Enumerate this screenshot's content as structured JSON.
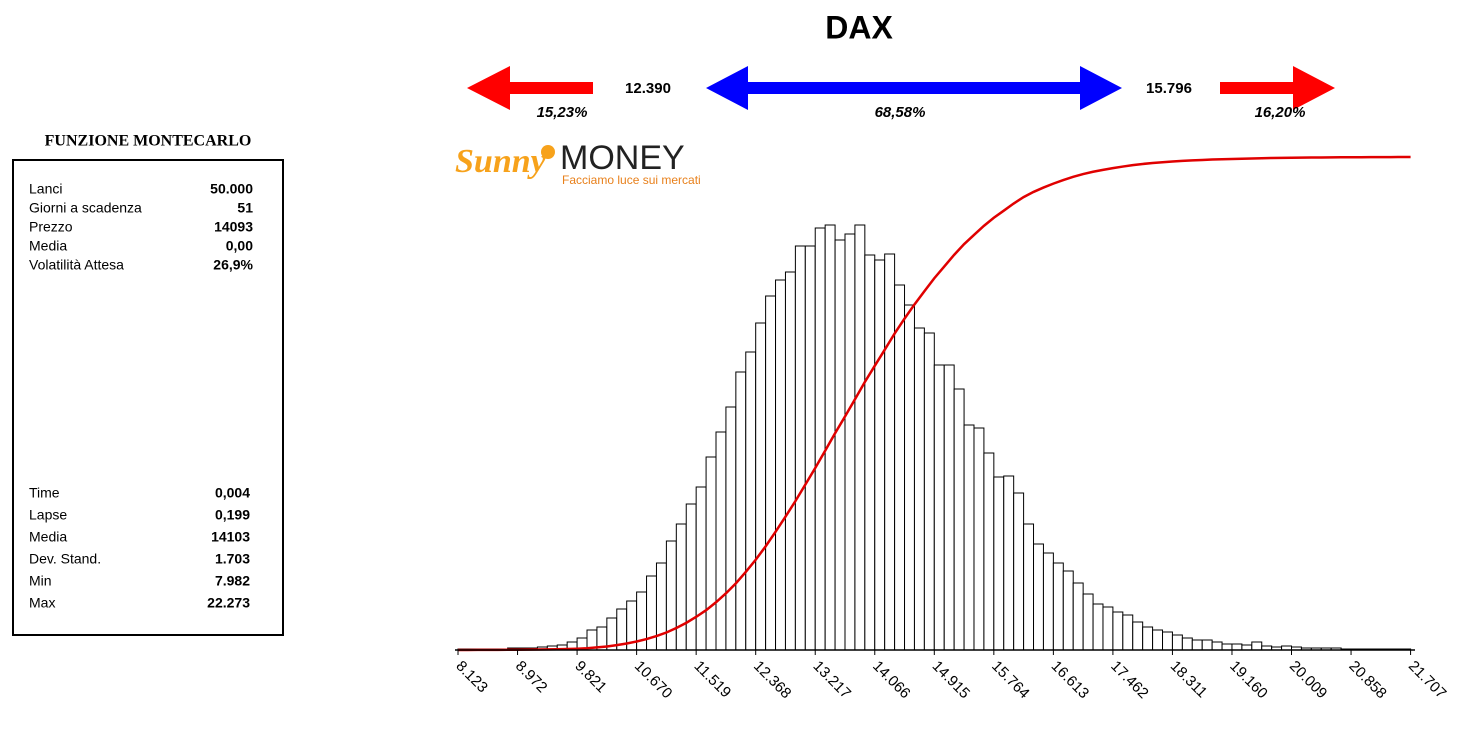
{
  "chart_data": {
    "type": "histogram",
    "title": "DAX",
    "bins": [
      8123,
      8264.5,
      8406,
      8547.5,
      8689,
      8830.5,
      8972,
      9113.5,
      9255,
      9396.5,
      9538,
      9679.5,
      9821,
      9962.5,
      10104,
      10245.5,
      10387,
      10528.5,
      10670,
      10811.5,
      10953,
      11094.5,
      11236,
      11377.5,
      11519,
      11660.5,
      11802,
      11943.5,
      12085,
      12226.5,
      12368,
      12509.5,
      12651,
      12792.5,
      12934,
      13075.5,
      13217,
      13358.5,
      13500,
      13641.5,
      13783,
      13924.5,
      14066,
      14207.5,
      14349,
      14490.5,
      14632,
      14773.5,
      14915,
      15056.5,
      15198,
      15339.5,
      15481,
      15622.5,
      15764,
      15905.5,
      16047,
      16188.5,
      16330,
      16471.5,
      16613,
      16754.5,
      16896,
      17037.5,
      17179,
      17320.5,
      17462,
      17603.5,
      17745,
      17886.5,
      18028,
      18169.5,
      18311,
      18452.5,
      18594,
      18735.5,
      18877,
      19018.5,
      19160,
      19301.5,
      19443,
      19584.5,
      19726,
      19867.5,
      20009,
      20150.5,
      20292,
      20433.5,
      20575,
      20716.5,
      20858,
      20999.5,
      21141,
      21282.5,
      21424,
      21565.5,
      21707
    ],
    "counts": [
      4,
      4,
      4,
      4,
      4,
      8,
      8,
      8,
      12,
      16,
      20,
      32,
      48,
      80,
      92,
      128,
      164,
      196,
      232,
      296,
      348,
      436,
      504,
      584,
      652,
      772,
      872,
      972,
      1112,
      1192,
      1308,
      1416,
      1480,
      1512,
      1616,
      1616,
      1688,
      1700,
      1640,
      1664,
      1700,
      1580,
      1560,
      1584,
      1460,
      1380,
      1288,
      1268,
      1140,
      1140,
      1044,
      900,
      888,
      788,
      692,
      696,
      628,
      504,
      424,
      388,
      348,
      316,
      268,
      224,
      184,
      172,
      152,
      140,
      112,
      92,
      80,
      72,
      60,
      48,
      40,
      40,
      32,
      24,
      24,
      20,
      32,
      16,
      12,
      16,
      12,
      8,
      8,
      8,
      8,
      4,
      4,
      4,
      4,
      4,
      4,
      4
    ],
    "color": "#ffffff",
    "line_color": "#e00000",
    "xlim": [
      8080,
      21770
    ],
    "xticks": [
      {
        "value": 8123,
        "label": "8.123"
      },
      {
        "value": 8972,
        "label": "8.972"
      },
      {
        "value": 9821,
        "label": "9.821"
      },
      {
        "value": 10670,
        "label": "10.670"
      },
      {
        "value": 11519,
        "label": "11.519"
      },
      {
        "value": 12368,
        "label": "12.368"
      },
      {
        "value": 13217,
        "label": "13.217"
      },
      {
        "value": 14066,
        "label": "14.066"
      },
      {
        "value": 14915,
        "label": "14.915"
      },
      {
        "value": 15764,
        "label": "15.764"
      },
      {
        "value": 16613,
        "label": "16.613"
      },
      {
        "value": 17462,
        "label": "17.462"
      },
      {
        "value": 18311,
        "label": "18.311"
      },
      {
        "value": 19160,
        "label": "19.160"
      },
      {
        "value": 20009,
        "label": "20.009"
      },
      {
        "value": 20858,
        "label": "20.858"
      },
      {
        "value": 21707,
        "label": "21.707"
      }
    ]
  },
  "levels": {
    "lower": "12.390",
    "upper": "15.796",
    "below_pct": "15,23%",
    "between_pct": "68,58%",
    "above_pct": "16,20%"
  },
  "logo": {
    "brand": "Sunny",
    "name": "MONEY",
    "tagline": "Facciamo luce sui mercati"
  },
  "panel": {
    "title": "FUNZIONE MONTECARLO",
    "inputs": [
      [
        "Lanci",
        "50.000"
      ],
      [
        "Giorni a scadenza",
        "51"
      ],
      [
        "Prezzo",
        "14093"
      ],
      [
        "Media",
        "0,00"
      ],
      [
        "Volatilità Attesa",
        "26,9%"
      ]
    ],
    "results": [
      [
        "Time",
        "0,004"
      ],
      [
        "Lapse",
        "0,199"
      ],
      [
        "Media",
        "14103"
      ],
      [
        "Dev. Stand.",
        "1.703"
      ],
      [
        "Min",
        "7.982"
      ],
      [
        "Max",
        "22.273"
      ]
    ]
  }
}
